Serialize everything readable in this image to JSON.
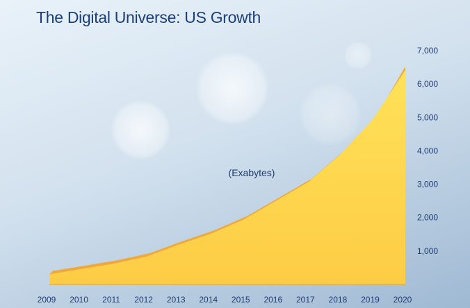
{
  "chart_data": {
    "type": "area",
    "title": "The Digital Universe: US Growth",
    "annotation": "(Exabytes)",
    "xlabel": "",
    "ylabel": "",
    "x": [
      "2009",
      "2010",
      "2011",
      "2012",
      "2013",
      "2014",
      "2015",
      "2016",
      "2017",
      "2018",
      "2019",
      "2020"
    ],
    "series": [
      {
        "name": "Exabytes",
        "values": [
          300,
          460,
          620,
          830,
          1190,
          1520,
          1940,
          2500,
          3060,
          3900,
          4940,
          6420
        ]
      }
    ],
    "yticks": [
      "1,000",
      "2,000",
      "3,000",
      "4,000",
      "5,000",
      "6,000",
      "7,000"
    ],
    "ytick_values": [
      1000,
      2000,
      3000,
      4000,
      5000,
      6000,
      7000
    ],
    "ylim": [
      0,
      7000
    ],
    "grid": false,
    "colors": {
      "fill": "#fdd44a",
      "edge": "#efa93a",
      "text": "#1f3c74"
    }
  }
}
